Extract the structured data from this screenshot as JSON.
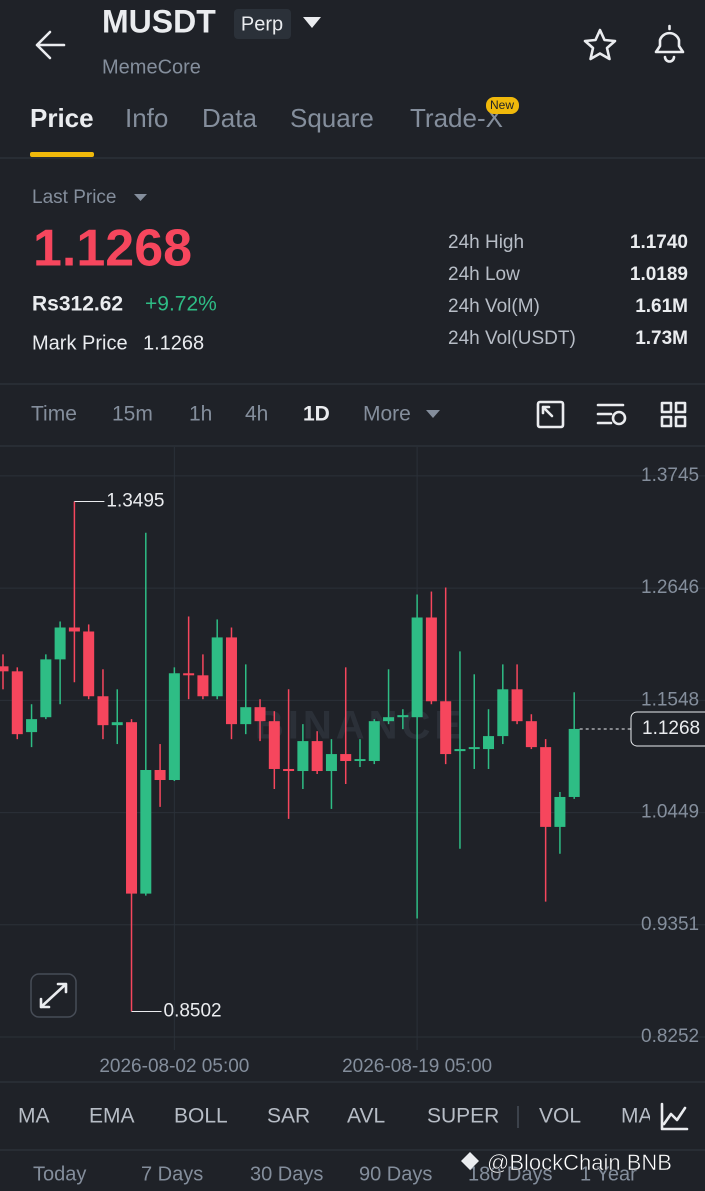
{
  "header": {
    "symbol": "MUSDT",
    "badge": "Perp",
    "subtitle": "MemeCore"
  },
  "tabs": [
    "Price",
    "Info",
    "Data",
    "Square",
    "Trade-X"
  ],
  "new_badge": "New",
  "summary": {
    "last_price_label": "Last Price",
    "last_price": "1.1268",
    "local_price": "Rs312.62",
    "change": "+9.72%",
    "mark_price_label": "Mark Price",
    "mark_price": "1.1268"
  },
  "stats": [
    [
      "24h High",
      "1.1740"
    ],
    [
      "24h Low",
      "1.0189"
    ],
    [
      "24h Vol(M)",
      "1.61M"
    ],
    [
      "24h Vol(USDT)",
      "1.73M"
    ]
  ],
  "intervals": [
    "Time",
    "15m",
    "1h",
    "4h",
    "1D",
    "More"
  ],
  "chart_data": {
    "type": "candlestick",
    "watermark": "BINANCE",
    "categories": [
      null,
      null,
      null,
      null,
      null,
      null,
      null,
      null,
      null,
      null,
      null,
      null,
      "2026-08-02 05:00",
      null,
      null,
      null,
      null,
      null,
      null,
      null,
      null,
      null,
      null,
      null,
      null,
      null,
      null,
      null,
      null,
      "2026-08-19 05:00",
      null,
      null,
      null,
      null,
      null,
      null,
      null,
      null,
      null,
      null,
      null
    ],
    "open": [
      1.1881,
      1.1832,
      1.1237,
      1.1383,
      1.1949,
      1.2261,
      1.2222,
      1.1588,
      1.1305,
      1.1334,
      0.9656,
      1.0866,
      1.0768,
      1.1813,
      1.1793,
      1.1588,
      1.2164,
      1.1315,
      1.1481,
      1.1344,
      1.0876,
      1.0856,
      1.1149,
      1.0856,
      1.1022,
      1.0954,
      1.0954,
      1.1344,
      1.1383,
      1.1383,
      1.2359,
      1.1539,
      1.1051,
      1.1071,
      1.1071,
      1.1198,
      1.1656,
      1.1344,
      1.109,
      1.0309,
      1.0602
    ],
    "high": [
      1.1998,
      1.1871,
      1.151,
      1.1998,
      1.232,
      1.3495,
      1.2291,
      1.1852,
      1.1656,
      1.1364,
      1.3189,
      1.112,
      1.1871,
      1.2369,
      1.1998,
      1.234,
      1.2261,
      1.19,
      1.1559,
      1.1442,
      1.1656,
      1.1315,
      1.1246,
      1.1168,
      1.1871,
      1.1168,
      1.1364,
      1.1852,
      1.1461,
      1.2584,
      1.2613,
      1.2652,
      1.2027,
      1.1803,
      1.1461,
      1.19,
      1.19,
      1.1412,
      1.1168,
      1.0651,
      1.1627
    ],
    "low": [
      1.1656,
      1.1168,
      1.109,
      1.1364,
      1.151,
      1.1725,
      1.1559,
      1.1168,
      1.112,
      0.8502,
      0.9636,
      1.0505,
      1.0758,
      1.1559,
      1.1559,
      1.1559,
      1.1168,
      1.1217,
      1.1149,
      1.068,
      1.0388,
      1.068,
      1.0827,
      1.0485,
      1.0729,
      1.0895,
      1.0924,
      1.1315,
      1.1266,
      0.9412,
      1.151,
      1.0924,
      1.0095,
      1.0876,
      1.0876,
      1.112,
      1.1315,
      1.1071,
      0.9577,
      1.0046,
      1.0583
    ],
    "close": [
      1.1832,
      1.1217,
      1.1364,
      1.1949,
      1.2261,
      1.2222,
      1.1588,
      1.1305,
      1.1334,
      0.9656,
      1.0866,
      1.0768,
      1.1813,
      1.1793,
      1.1588,
      1.2164,
      1.1315,
      1.1481,
      1.1344,
      1.0876,
      1.0856,
      1.1149,
      1.0856,
      1.1022,
      1.0954,
      1.0973,
      1.1344,
      1.1383,
      1.1403,
      1.2359,
      1.1539,
      1.1022,
      1.1071,
      1.109,
      1.1198,
      1.1656,
      1.1344,
      1.109,
      1.0309,
      1.0602,
      1.1268
    ],
    "up_color": "#2ebd85",
    "down_color": "#f6465d",
    "ylim": [
      0.8125,
      1.4028
    ],
    "yticks": [
      1.3745,
      1.2646,
      1.1548,
      1.0449,
      0.9351,
      0.8252
    ],
    "grid": true
  },
  "indicators": [
    "MA",
    "EMA",
    "BOLL",
    "SAR",
    "AVL",
    "SUPER",
    "VOL",
    "MA"
  ],
  "ranges": [
    "Today",
    "7 Days",
    "30 Days",
    "90 Days",
    "180 Days",
    "1 Year"
  ],
  "watermark": "@BlockChain BNB"
}
